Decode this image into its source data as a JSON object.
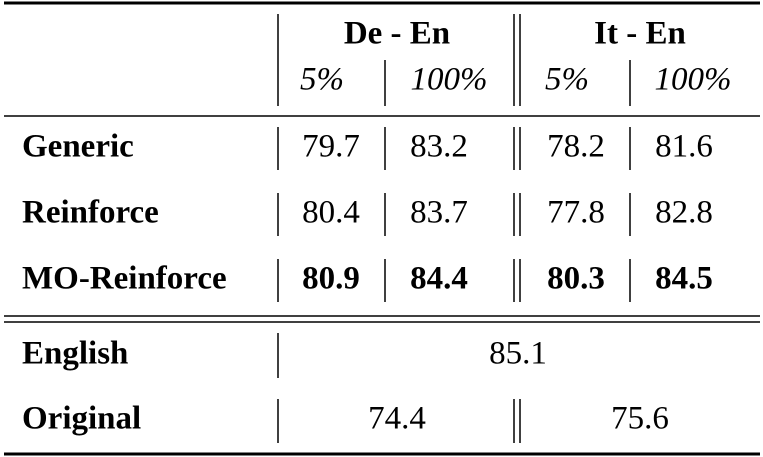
{
  "table": {
    "header": {
      "groups": [
        "De - En",
        "It - En"
      ],
      "subcolumns": [
        "5%",
        "100%",
        "5%",
        "100%"
      ]
    },
    "rows": [
      {
        "label": "Generic",
        "values": [
          79.7,
          83.2,
          78.2,
          81.6
        ]
      },
      {
        "label": "Reinforce",
        "values": [
          80.4,
          83.7,
          77.8,
          82.8
        ]
      },
      {
        "label": "MO-Reinforce",
        "values": [
          80.9,
          84.4,
          80.3,
          84.5
        ]
      }
    ],
    "english": {
      "label": "English",
      "value": 85.1
    },
    "original": {
      "label": "Original",
      "values": [
        74.4,
        75.6
      ]
    }
  }
}
